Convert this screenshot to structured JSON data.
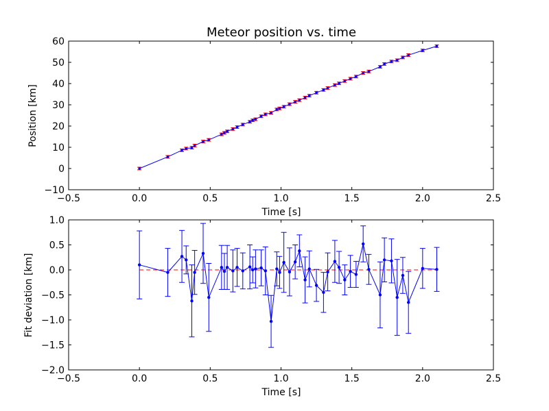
{
  "chart_data": [
    {
      "type": "line",
      "title": "Meteor position vs. time",
      "xlabel": "Time [s]",
      "ylabel": "Position [km]",
      "xlim": [
        -0.5,
        2.5
      ],
      "ylim": [
        -10,
        60
      ],
      "xticks": [
        -0.5,
        0.0,
        0.5,
        1.0,
        1.5,
        2.0,
        2.5
      ],
      "xtick_labels": [
        "−0.5",
        "0.0",
        "0.5",
        "1.0",
        "1.5",
        "2.0",
        "2.5"
      ],
      "yticks": [
        -10,
        0,
        10,
        20,
        30,
        40,
        50,
        60
      ],
      "ytick_labels": [
        "−10",
        "0",
        "10",
        "20",
        "30",
        "40",
        "50",
        "60"
      ],
      "grid": false,
      "legend": false,
      "colors": {
        "fit": "#0000ff",
        "points": "#ff0000"
      },
      "series": [
        {
          "role": "fit",
          "x": [
            0.0,
            0.2,
            0.3,
            0.33,
            0.37,
            0.39,
            0.45,
            0.49,
            0.58,
            0.6,
            0.62,
            0.66,
            0.69,
            0.73,
            0.78,
            0.8,
            0.82,
            0.86,
            0.89,
            0.93,
            0.97,
            0.99,
            1.02,
            1.06,
            1.1,
            1.13,
            1.17,
            1.2,
            1.25,
            1.3,
            1.33,
            1.38,
            1.41,
            1.45,
            1.49,
            1.53,
            1.58,
            1.62,
            1.7,
            1.73,
            1.78,
            1.82,
            1.86,
            1.9,
            2.0,
            2.1
          ],
          "y": [
            0.0,
            5.5,
            8.6,
            9.4,
            9.8,
            10.8,
            12.7,
            13.5,
            16.1,
            16.8,
            17.5,
            18.6,
            19.5,
            20.7,
            22.0,
            22.7,
            23.2,
            24.6,
            25.5,
            26.2,
            27.8,
            28.3,
            29.1,
            30.3,
            31.4,
            32.2,
            33.4,
            34.3,
            35.7,
            37.0,
            37.9,
            39.3,
            40.1,
            41.2,
            42.3,
            43.3,
            45.0,
            45.7,
            47.9,
            49.2,
            50.4,
            51.0,
            52.3,
            53.4,
            55.6,
            57.6
          ]
        },
        {
          "role": "measurements",
          "x": [
            0.0,
            0.2,
            0.3,
            0.33,
            0.37,
            0.39,
            0.45,
            0.49,
            0.58,
            0.6,
            0.62,
            0.66,
            0.69,
            0.73,
            0.78,
            0.8,
            0.82,
            0.86,
            0.89,
            0.93,
            0.97,
            0.99,
            1.02,
            1.06,
            1.1,
            1.13,
            1.17,
            1.2,
            1.25,
            1.3,
            1.33,
            1.38,
            1.41,
            1.45,
            1.49,
            1.53,
            1.58,
            1.62,
            1.7,
            1.73,
            1.78,
            1.82,
            1.86,
            1.9,
            2.0,
            2.1
          ],
          "y": [
            0.0,
            5.5,
            8.6,
            9.4,
            9.8,
            10.8,
            12.7,
            13.5,
            16.1,
            16.8,
            17.5,
            18.6,
            19.5,
            20.7,
            22.0,
            22.7,
            23.2,
            24.6,
            25.5,
            26.2,
            27.8,
            28.3,
            29.1,
            30.3,
            31.4,
            32.2,
            33.4,
            34.3,
            35.7,
            37.0,
            37.9,
            39.3,
            40.1,
            41.2,
            42.3,
            43.3,
            45.0,
            45.7,
            47.9,
            49.2,
            50.4,
            51.0,
            52.3,
            53.4,
            55.6,
            57.6
          ],
          "yerr": 0.6
        }
      ]
    },
    {
      "type": "line",
      "title": "",
      "xlabel": "Time [s]",
      "ylabel": "Fit deviation [km]",
      "xlim": [
        -0.5,
        2.5
      ],
      "ylim": [
        -2.0,
        1.0
      ],
      "xticks": [
        -0.5,
        0.0,
        0.5,
        1.0,
        1.5,
        2.0,
        2.5
      ],
      "xtick_labels": [
        "−0.5",
        "0.0",
        "0.5",
        "1.0",
        "1.5",
        "2.0",
        "2.5"
      ],
      "yticks": [
        -2.0,
        -1.5,
        -1.0,
        -0.5,
        0.0,
        0.5,
        1.0
      ],
      "ytick_labels": [
        "−2.0",
        "−1.5",
        "−1.0",
        "−0.5",
        "0.0",
        "0.5",
        "1.0"
      ],
      "grid": false,
      "legend": false,
      "colors": {
        "deviation": "#0000ff",
        "zero_line": "#ff0000"
      },
      "reference_line": {
        "y": 0.0,
        "x_range": [
          0.0,
          2.1
        ],
        "style": "dashed"
      },
      "series": [
        {
          "role": "deviation",
          "x": [
            0.0,
            0.2,
            0.3,
            0.33,
            0.37,
            0.39,
            0.45,
            0.49,
            0.58,
            0.6,
            0.62,
            0.66,
            0.69,
            0.73,
            0.78,
            0.8,
            0.82,
            0.86,
            0.89,
            0.93,
            0.97,
            0.99,
            1.02,
            1.06,
            1.1,
            1.13,
            1.17,
            1.2,
            1.25,
            1.3,
            1.33,
            1.38,
            1.41,
            1.45,
            1.49,
            1.53,
            1.58,
            1.62,
            1.7,
            1.73,
            1.78,
            1.82,
            1.86,
            1.9,
            2.0,
            2.1
          ],
          "y": [
            0.1,
            -0.05,
            0.27,
            0.2,
            -0.62,
            -0.05,
            0.33,
            -0.55,
            0.05,
            -0.03,
            0.05,
            -0.02,
            0.05,
            -0.02,
            0.06,
            0.0,
            0.02,
            0.04,
            -0.02,
            -1.03,
            0.02,
            -0.05,
            0.15,
            -0.04,
            0.16,
            0.38,
            -0.2,
            0.02,
            -0.31,
            -0.45,
            -0.04,
            0.17,
            0.05,
            -0.2,
            -0.03,
            -0.09,
            0.52,
            0.01,
            -0.5,
            0.2,
            0.18,
            -0.55,
            -0.11,
            -0.65,
            0.03,
            0.01
          ],
          "yerr": [
            0.68,
            0.48,
            0.52,
            0.28,
            0.72,
            0.44,
            0.6,
            0.68,
            0.44,
            0.36,
            0.44,
            0.42,
            0.38,
            0.36,
            0.44,
            0.26,
            0.38,
            0.36,
            0.48,
            0.52,
            0.34,
            0.32,
            0.6,
            0.48,
            0.34,
            0.32,
            0.46,
            0.36,
            0.32,
            0.4,
            0.38,
            0.42,
            0.32,
            0.3,
            0.32,
            0.26,
            0.36,
            0.3,
            0.66,
            0.44,
            0.44,
            0.76,
            0.36,
            0.62,
            0.4,
            0.44
          ]
        }
      ]
    }
  ]
}
